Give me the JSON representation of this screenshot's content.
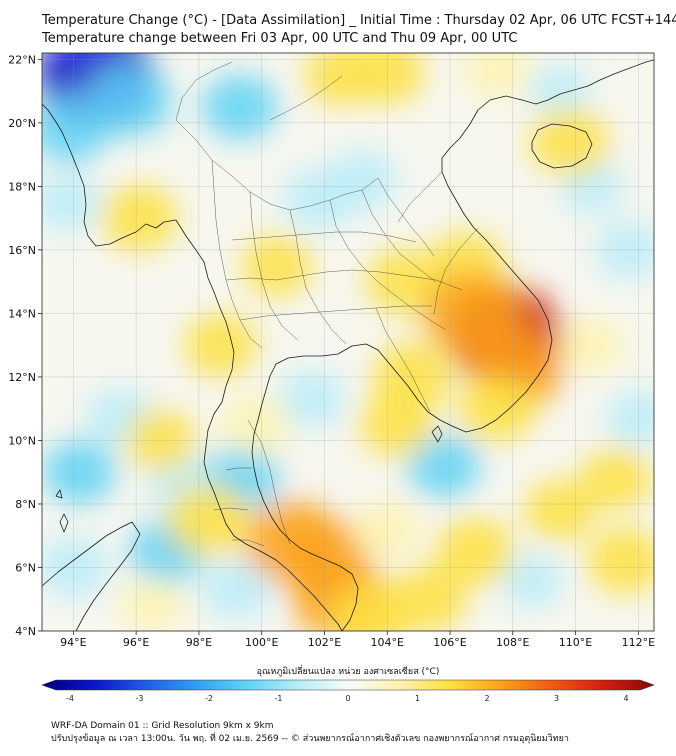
{
  "title": {
    "line1": "Temperature Change (°C) - [Data Assimilation] _ Initial Time : Thursday 02 Apr, 06 UTC FCST+144",
    "line2": "Temperature change between Fri 03 Apr, 00 UTC and Thu 09 Apr, 00 UTC"
  },
  "map": {
    "lat_ticks": [
      {
        "label": "22°N",
        "lat": 22
      },
      {
        "label": "20°N",
        "lat": 20
      },
      {
        "label": "18°N",
        "lat": 18
      },
      {
        "label": "16°N",
        "lat": 16
      },
      {
        "label": "14°N",
        "lat": 14
      },
      {
        "label": "12°N",
        "lat": 12
      },
      {
        "label": "10°N",
        "lat": 10
      },
      {
        "label": "8°N",
        "lat": 8
      },
      {
        "label": "6°N",
        "lat": 6
      },
      {
        "label": "4°N",
        "lat": 4
      }
    ],
    "lon_ticks": [
      {
        "label": "94°E",
        "lon": 94
      },
      {
        "label": "96°E",
        "lon": 96
      },
      {
        "label": "98°E",
        "lon": 98
      },
      {
        "label": "100°E",
        "lon": 100
      },
      {
        "label": "102°E",
        "lon": 102
      },
      {
        "label": "104°E",
        "lon": 104
      },
      {
        "label": "106°E",
        "lon": 106
      },
      {
        "label": "108°E",
        "lon": 108
      },
      {
        "label": "110°E",
        "lon": 110
      },
      {
        "label": "112°E",
        "lon": 112
      }
    ],
    "lon_range": [
      93,
      112.5
    ],
    "lat_range": [
      4,
      22.2
    ],
    "grid": true,
    "coastline_color": "#1a1a1a",
    "temperature_blobs": [
      {
        "lon": 94.7,
        "lat": 21.5,
        "value": -3.2
      },
      {
        "lon": 95.8,
        "lat": 20.7,
        "value": -1.6
      },
      {
        "lon": 93.9,
        "lat": 19.8,
        "value": -1.3
      },
      {
        "lon": 99.3,
        "lat": 20.5,
        "value": -1.2
      },
      {
        "lon": 101.8,
        "lat": 17.6,
        "value": -1.0
      },
      {
        "lon": 103.2,
        "lat": 18.2,
        "value": -0.9
      },
      {
        "lon": 93.8,
        "lat": 17.5,
        "value": -0.8
      },
      {
        "lon": 94.2,
        "lat": 9.0,
        "value": -1.1
      },
      {
        "lon": 95.5,
        "lat": 10.7,
        "value": -0.9
      },
      {
        "lon": 97.0,
        "lat": 6.5,
        "value": -1.2
      },
      {
        "lon": 97.5,
        "lat": 8.7,
        "value": -1.0
      },
      {
        "lon": 99.4,
        "lat": 8.8,
        "value": -1.1
      },
      {
        "lon": 94.0,
        "lat": 6.0,
        "value": -1.0
      },
      {
        "lon": 99.2,
        "lat": 5.3,
        "value": -0.9
      },
      {
        "lon": 105.8,
        "lat": 9.2,
        "value": -1.1
      },
      {
        "lon": 101.6,
        "lat": 11.3,
        "value": -0.8
      },
      {
        "lon": 111.7,
        "lat": 16.0,
        "value": -0.8
      },
      {
        "lon": 110.5,
        "lat": 18.0,
        "value": -0.6
      },
      {
        "lon": 112.0,
        "lat": 10.7,
        "value": -0.7
      },
      {
        "lon": 108.6,
        "lat": 5.6,
        "value": -0.6
      },
      {
        "lon": 109.5,
        "lat": 21.0,
        "value": -0.5
      },
      {
        "lon": 102.5,
        "lat": 21.5,
        "value": 1.0
      },
      {
        "lon": 104.0,
        "lat": 21.6,
        "value": 1.2
      },
      {
        "lon": 107.5,
        "lat": 21.7,
        "value": 0.9
      },
      {
        "lon": 109.8,
        "lat": 19.4,
        "value": 1.4
      },
      {
        "lon": 96.1,
        "lat": 17.0,
        "value": 1.3
      },
      {
        "lon": 100.5,
        "lat": 15.5,
        "value": 1.0
      },
      {
        "lon": 104.5,
        "lat": 15.0,
        "value": 1.2
      },
      {
        "lon": 106.5,
        "lat": 15.5,
        "value": 1.4
      },
      {
        "lon": 107.8,
        "lat": 13.3,
        "value": 3.1
      },
      {
        "lon": 106.7,
        "lat": 14.0,
        "value": 2.3
      },
      {
        "lon": 108.2,
        "lat": 12.2,
        "value": 1.8
      },
      {
        "lon": 104.8,
        "lat": 12.0,
        "value": 1.4
      },
      {
        "lon": 104.3,
        "lat": 10.5,
        "value": 1.2
      },
      {
        "lon": 107.5,
        "lat": 11.0,
        "value": 1.3
      },
      {
        "lon": 98.7,
        "lat": 13.0,
        "value": 1.1
      },
      {
        "lon": 96.8,
        "lat": 10.0,
        "value": 1.0
      },
      {
        "lon": 98.3,
        "lat": 7.5,
        "value": 1.6
      },
      {
        "lon": 101.0,
        "lat": 6.8,
        "value": 2.2
      },
      {
        "lon": 102.0,
        "lat": 6.3,
        "value": 2.0
      },
      {
        "lon": 102.5,
        "lat": 5.0,
        "value": 2.2
      },
      {
        "lon": 103.5,
        "lat": 4.4,
        "value": 1.5
      },
      {
        "lon": 105.3,
        "lat": 5.0,
        "value": 1.3
      },
      {
        "lon": 104.0,
        "lat": 7.2,
        "value": 0.9
      },
      {
        "lon": 106.8,
        "lat": 6.5,
        "value": 1.4
      },
      {
        "lon": 109.5,
        "lat": 7.8,
        "value": 1.0
      },
      {
        "lon": 111.6,
        "lat": 6.2,
        "value": 1.3
      },
      {
        "lon": 111.3,
        "lat": 8.8,
        "value": 1.0
      },
      {
        "lon": 110.5,
        "lat": 13.0,
        "value": 0.7
      },
      {
        "lon": 96.5,
        "lat": 4.8,
        "value": 0.7
      },
      {
        "lon": 99.8,
        "lat": 10.5,
        "value": 0.9
      }
    ]
  },
  "colorbar": {
    "label": "อุณหภูมิเปลี่ยนแปลง หน่วย องศาเซลเซียส (°C)",
    "ticks": [
      "-4",
      "-3",
      "-2",
      "-1",
      "0",
      "1",
      "2",
      "3",
      "4"
    ],
    "range": [
      -4,
      4
    ],
    "colors": [
      "#00007a",
      "#0a14c8",
      "#1e5ae6",
      "#2f9ef2",
      "#5fd2f5",
      "#b8ecf8",
      "#f6fbfb",
      "#fdf3b0",
      "#fde040",
      "#fba21a",
      "#f05a14",
      "#d21e12",
      "#8a0808"
    ]
  },
  "footer": {
    "line1": "WRF-DA Domain 01 :: Grid Resolution 9km x 9km",
    "line2": "ปรับปรุงข้อมูล ณ เวลา 13:00น. วัน พฤ. ที่ 02 เม.ย. 2569 -- © ส่วนพยากรณ์อากาศเชิงตัวเลข กองพยากรณ์อากาศ กรมอุตุนิยมวิทยา"
  }
}
